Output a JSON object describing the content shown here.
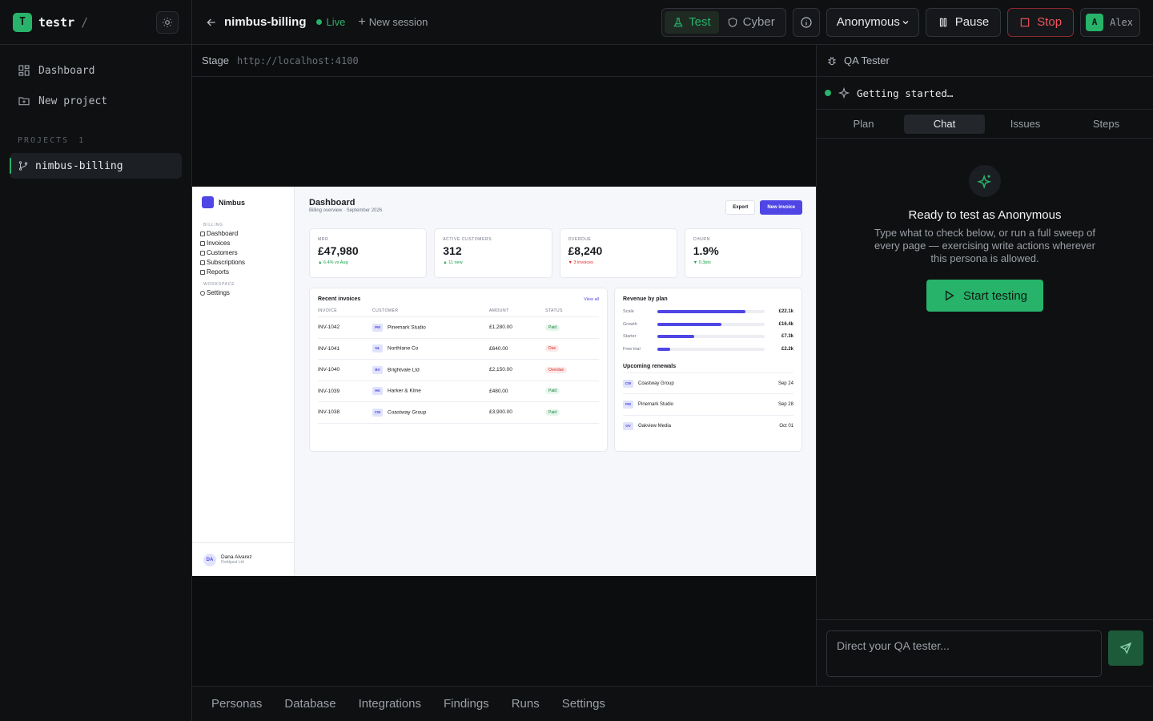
{
  "sidebar": {
    "logo_letter": "T",
    "app_name": "testr",
    "separator": "/",
    "nav": [
      {
        "label": "Dashboard",
        "icon": "dashboard-icon"
      },
      {
        "label": "New project",
        "icon": "folder-plus-icon"
      }
    ],
    "projects_label": "PROJECTS",
    "projects_count": "1",
    "projects": [
      {
        "label": "nimbus-billing",
        "icon": "git-branch-icon"
      }
    ]
  },
  "topbar": {
    "title": "nimbus-billing",
    "status": "Live",
    "new_session": "New session",
    "modes": [
      {
        "label": "Test",
        "active": true
      },
      {
        "label": "Cyber",
        "active": false
      }
    ],
    "persona": "Anonymous",
    "pause": "Pause",
    "stop": "Stop",
    "user_initial": "A",
    "user_name": "Alex"
  },
  "stage": {
    "label": "Stage",
    "url": "http://localhost:4100"
  },
  "preview": {
    "brand": "Nimbus",
    "sections": [
      {
        "title": "BILLING",
        "links": [
          "Dashboard",
          "Invoices",
          "Customers",
          "Subscriptions",
          "Reports"
        ]
      },
      {
        "title": "WORKSPACE",
        "links": [
          "Settings"
        ]
      }
    ],
    "user": {
      "initials": "DA",
      "name": "Dana Alvarez",
      "org": "Fieldpost Ltd"
    },
    "heading": "Dashboard",
    "subheading": "Billing overview · September 2026",
    "export_label": "Export",
    "new_invoice_label": "New invoice",
    "kpis": [
      {
        "label": "MRR",
        "value": "£47,980",
        "delta": "▲ 6.4% vs Aug",
        "dir": "up"
      },
      {
        "label": "ACTIVE CUSTOMERS",
        "value": "312",
        "delta": "▲ 11 new",
        "dir": "up"
      },
      {
        "label": "OVERDUE",
        "value": "£8,240",
        "delta": "▼ 3 invoices",
        "dir": "down"
      },
      {
        "label": "CHURN",
        "value": "1.9%",
        "delta": "▼ 0.3pts",
        "dir": "up"
      }
    ],
    "invoices": {
      "title": "Recent invoices",
      "view_all": "View all",
      "columns": [
        "INVOICE",
        "CUSTOMER",
        "AMOUNT",
        "STATUS"
      ],
      "rows": [
        {
          "id": "INV-1042",
          "initials": "PM",
          "customer": "Pinemark Studio",
          "amount": "£1,280.00",
          "status": "Paid",
          "kind": "paid"
        },
        {
          "id": "INV-1041",
          "initials": "NL",
          "customer": "Northlane Co",
          "amount": "£640.00",
          "status": "Due",
          "kind": "due"
        },
        {
          "id": "INV-1040",
          "initials": "BV",
          "customer": "Brightvale Ltd",
          "amount": "£2,150.00",
          "status": "Overdue",
          "kind": "overdue"
        },
        {
          "id": "INV-1039",
          "initials": "HK",
          "customer": "Harker & Kline",
          "amount": "£480.00",
          "status": "Paid",
          "kind": "paid"
        },
        {
          "id": "INV-1038",
          "initials": "CW",
          "customer": "Coastway Group",
          "amount": "£3,900.00",
          "status": "Paid",
          "kind": "paid"
        }
      ]
    },
    "revenue": {
      "title": "Revenue by plan",
      "plans": [
        {
          "label": "Scale",
          "value": "£22.1k",
          "fraction": 0.82
        },
        {
          "label": "Growth",
          "value": "£16.4k",
          "fraction": 0.6
        },
        {
          "label": "Starter",
          "value": "£7.3k",
          "fraction": 0.34
        },
        {
          "label": "Free trial",
          "value": "£2.2k",
          "fraction": 0.12
        }
      ],
      "renewals_title": "Upcoming renewals",
      "renewals": [
        {
          "initials": "CW",
          "name": "Coastway Group",
          "date": "Sep 24"
        },
        {
          "initials": "PM",
          "name": "Pinemark Studio",
          "date": "Sep 28"
        },
        {
          "initials": "OV",
          "name": "Oakview Media",
          "date": "Oct 01"
        }
      ]
    }
  },
  "qa": {
    "title": "QA Tester",
    "status": "Getting started…",
    "tabs": [
      {
        "label": "Plan",
        "active": false
      },
      {
        "label": "Chat",
        "active": true
      },
      {
        "label": "Issues",
        "active": false
      },
      {
        "label": "Steps",
        "active": false
      }
    ],
    "empty_title": "Ready to test as Anonymous",
    "empty_desc": "Type what to check below, or run a full sweep of every page — exercising write actions wherever this persona is allowed.",
    "start_label": "Start testing",
    "input_placeholder": "Direct your QA tester..."
  },
  "bottom_tabs": [
    "Personas",
    "Database",
    "Integrations",
    "Findings",
    "Runs",
    "Settings"
  ],
  "colors": {
    "accent": "#27b36a",
    "danger": "#f1545d",
    "preview_accent": "#4f46e5"
  }
}
